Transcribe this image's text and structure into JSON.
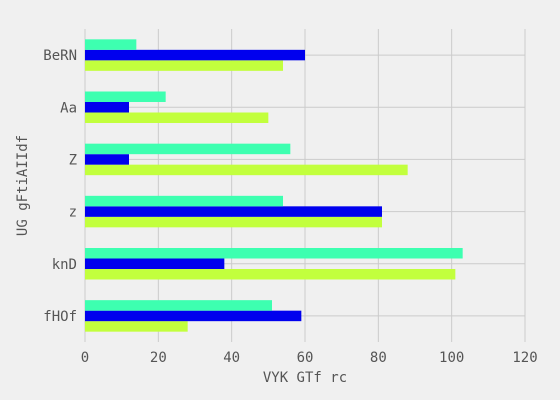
{
  "chart_data": {
    "type": "bar",
    "orientation": "horizontal",
    "title": "",
    "xlabel": "VYK GTf rc",
    "ylabel": "UG  gFtiAIIdf",
    "xlim": [
      0,
      120
    ],
    "xticks": [
      0,
      20,
      40,
      60,
      80,
      100,
      120
    ],
    "grid": true,
    "categories": [
      "fHOf",
      "knD",
      "z",
      "Z",
      "Aa",
      "BeRN"
    ],
    "series": [
      {
        "color": "#c2ff3d",
        "values": [
          28,
          101,
          81,
          88,
          50,
          54
        ]
      },
      {
        "color": "#0000ee",
        "values": [
          59,
          38,
          81,
          12,
          12,
          60
        ]
      },
      {
        "color": "#3dffb0",
        "values": [
          51,
          103,
          54,
          56,
          22,
          14
        ]
      }
    ]
  }
}
